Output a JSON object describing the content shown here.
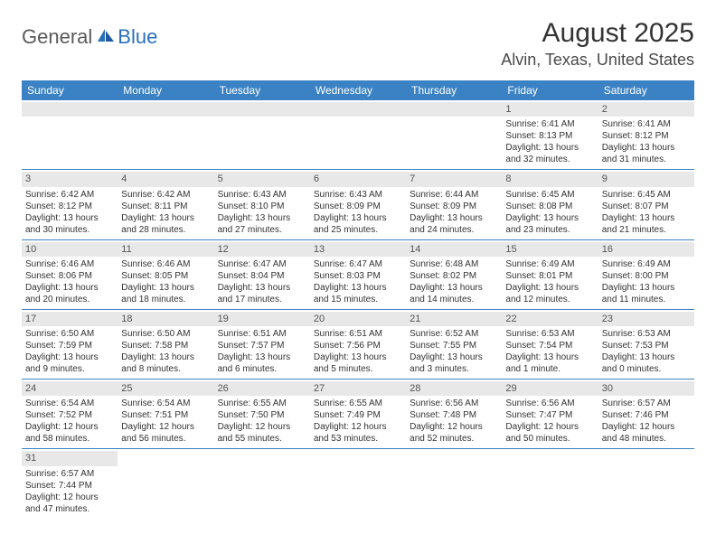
{
  "logo": {
    "general": "General",
    "blue": "Blue"
  },
  "title": "August 2025",
  "location": "Alvin, Texas, United States",
  "day_headers": [
    "Sunday",
    "Monday",
    "Tuesday",
    "Wednesday",
    "Thursday",
    "Friday",
    "Saturday"
  ],
  "colors": {
    "header_bg": "#3b82c4",
    "header_text": "#ffffff",
    "date_bg": "#e8e8e8",
    "border": "#3b82c4",
    "text": "#333333",
    "logo_gray": "#5a5a5a",
    "logo_blue": "#2b6fb8"
  },
  "weeks": [
    [
      {
        "date": "",
        "lines": []
      },
      {
        "date": "",
        "lines": []
      },
      {
        "date": "",
        "lines": []
      },
      {
        "date": "",
        "lines": []
      },
      {
        "date": "",
        "lines": []
      },
      {
        "date": "1",
        "lines": [
          "Sunrise: 6:41 AM",
          "Sunset: 8:13 PM",
          "Daylight: 13 hours",
          "and 32 minutes."
        ]
      },
      {
        "date": "2",
        "lines": [
          "Sunrise: 6:41 AM",
          "Sunset: 8:12 PM",
          "Daylight: 13 hours",
          "and 31 minutes."
        ]
      }
    ],
    [
      {
        "date": "3",
        "lines": [
          "Sunrise: 6:42 AM",
          "Sunset: 8:12 PM",
          "Daylight: 13 hours",
          "and 30 minutes."
        ]
      },
      {
        "date": "4",
        "lines": [
          "Sunrise: 6:42 AM",
          "Sunset: 8:11 PM",
          "Daylight: 13 hours",
          "and 28 minutes."
        ]
      },
      {
        "date": "5",
        "lines": [
          "Sunrise: 6:43 AM",
          "Sunset: 8:10 PM",
          "Daylight: 13 hours",
          "and 27 minutes."
        ]
      },
      {
        "date": "6",
        "lines": [
          "Sunrise: 6:43 AM",
          "Sunset: 8:09 PM",
          "Daylight: 13 hours",
          "and 25 minutes."
        ]
      },
      {
        "date": "7",
        "lines": [
          "Sunrise: 6:44 AM",
          "Sunset: 8:09 PM",
          "Daylight: 13 hours",
          "and 24 minutes."
        ]
      },
      {
        "date": "8",
        "lines": [
          "Sunrise: 6:45 AM",
          "Sunset: 8:08 PM",
          "Daylight: 13 hours",
          "and 23 minutes."
        ]
      },
      {
        "date": "9",
        "lines": [
          "Sunrise: 6:45 AM",
          "Sunset: 8:07 PM",
          "Daylight: 13 hours",
          "and 21 minutes."
        ]
      }
    ],
    [
      {
        "date": "10",
        "lines": [
          "Sunrise: 6:46 AM",
          "Sunset: 8:06 PM",
          "Daylight: 13 hours",
          "and 20 minutes."
        ]
      },
      {
        "date": "11",
        "lines": [
          "Sunrise: 6:46 AM",
          "Sunset: 8:05 PM",
          "Daylight: 13 hours",
          "and 18 minutes."
        ]
      },
      {
        "date": "12",
        "lines": [
          "Sunrise: 6:47 AM",
          "Sunset: 8:04 PM",
          "Daylight: 13 hours",
          "and 17 minutes."
        ]
      },
      {
        "date": "13",
        "lines": [
          "Sunrise: 6:47 AM",
          "Sunset: 8:03 PM",
          "Daylight: 13 hours",
          "and 15 minutes."
        ]
      },
      {
        "date": "14",
        "lines": [
          "Sunrise: 6:48 AM",
          "Sunset: 8:02 PM",
          "Daylight: 13 hours",
          "and 14 minutes."
        ]
      },
      {
        "date": "15",
        "lines": [
          "Sunrise: 6:49 AM",
          "Sunset: 8:01 PM",
          "Daylight: 13 hours",
          "and 12 minutes."
        ]
      },
      {
        "date": "16",
        "lines": [
          "Sunrise: 6:49 AM",
          "Sunset: 8:00 PM",
          "Daylight: 13 hours",
          "and 11 minutes."
        ]
      }
    ],
    [
      {
        "date": "17",
        "lines": [
          "Sunrise: 6:50 AM",
          "Sunset: 7:59 PM",
          "Daylight: 13 hours",
          "and 9 minutes."
        ]
      },
      {
        "date": "18",
        "lines": [
          "Sunrise: 6:50 AM",
          "Sunset: 7:58 PM",
          "Daylight: 13 hours",
          "and 8 minutes."
        ]
      },
      {
        "date": "19",
        "lines": [
          "Sunrise: 6:51 AM",
          "Sunset: 7:57 PM",
          "Daylight: 13 hours",
          "and 6 minutes."
        ]
      },
      {
        "date": "20",
        "lines": [
          "Sunrise: 6:51 AM",
          "Sunset: 7:56 PM",
          "Daylight: 13 hours",
          "and 5 minutes."
        ]
      },
      {
        "date": "21",
        "lines": [
          "Sunrise: 6:52 AM",
          "Sunset: 7:55 PM",
          "Daylight: 13 hours",
          "and 3 minutes."
        ]
      },
      {
        "date": "22",
        "lines": [
          "Sunrise: 6:53 AM",
          "Sunset: 7:54 PM",
          "Daylight: 13 hours",
          "and 1 minute."
        ]
      },
      {
        "date": "23",
        "lines": [
          "Sunrise: 6:53 AM",
          "Sunset: 7:53 PM",
          "Daylight: 13 hours",
          "and 0 minutes."
        ]
      }
    ],
    [
      {
        "date": "24",
        "lines": [
          "Sunrise: 6:54 AM",
          "Sunset: 7:52 PM",
          "Daylight: 12 hours",
          "and 58 minutes."
        ]
      },
      {
        "date": "25",
        "lines": [
          "Sunrise: 6:54 AM",
          "Sunset: 7:51 PM",
          "Daylight: 12 hours",
          "and 56 minutes."
        ]
      },
      {
        "date": "26",
        "lines": [
          "Sunrise: 6:55 AM",
          "Sunset: 7:50 PM",
          "Daylight: 12 hours",
          "and 55 minutes."
        ]
      },
      {
        "date": "27",
        "lines": [
          "Sunrise: 6:55 AM",
          "Sunset: 7:49 PM",
          "Daylight: 12 hours",
          "and 53 minutes."
        ]
      },
      {
        "date": "28",
        "lines": [
          "Sunrise: 6:56 AM",
          "Sunset: 7:48 PM",
          "Daylight: 12 hours",
          "and 52 minutes."
        ]
      },
      {
        "date": "29",
        "lines": [
          "Sunrise: 6:56 AM",
          "Sunset: 7:47 PM",
          "Daylight: 12 hours",
          "and 50 minutes."
        ]
      },
      {
        "date": "30",
        "lines": [
          "Sunrise: 6:57 AM",
          "Sunset: 7:46 PM",
          "Daylight: 12 hours",
          "and 48 minutes."
        ]
      }
    ],
    [
      {
        "date": "31",
        "lines": [
          "Sunrise: 6:57 AM",
          "Sunset: 7:44 PM",
          "Daylight: 12 hours",
          "and 47 minutes."
        ]
      },
      {
        "date": "",
        "lines": []
      },
      {
        "date": "",
        "lines": []
      },
      {
        "date": "",
        "lines": []
      },
      {
        "date": "",
        "lines": []
      },
      {
        "date": "",
        "lines": []
      },
      {
        "date": "",
        "lines": []
      }
    ]
  ]
}
